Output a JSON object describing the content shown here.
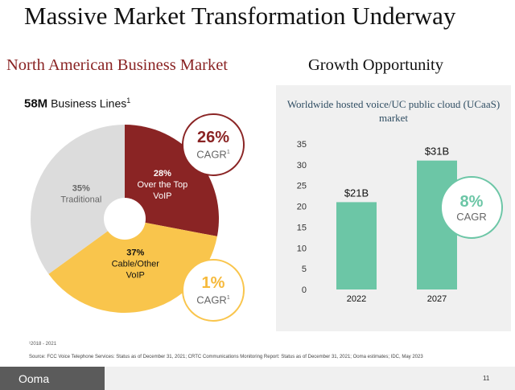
{
  "slide": {
    "title": "Massive Market Transformation Underway",
    "left_heading": "North American Business Market",
    "right_heading": "Growth Opportunity"
  },
  "market": {
    "lines_value": "58M",
    "lines_label": "Business Lines",
    "lines_sup": "1"
  },
  "cagr_badges": {
    "ott": {
      "pct": "26%",
      "label": "CAGR",
      "sup": "1"
    },
    "cable": {
      "pct": "1%",
      "label": "CAGR",
      "sup": "1"
    },
    "ucaas": {
      "pct": "8%",
      "label": "CAGR"
    }
  },
  "colors": {
    "ott": "#8a2424",
    "cable": "#f9c54c",
    "traditional": "#dcdcdc",
    "bar": "#6cc6a6",
    "panel": "#f0f0f0"
  },
  "chart_data": [
    {
      "type": "pie",
      "title": "",
      "slices": [
        {
          "label": "Over the Top VoIP",
          "label_lines": [
            "28%",
            "Over the Top",
            "VoIP"
          ],
          "value": 28
        },
        {
          "label": "Cable/Other VoIP",
          "label_lines": [
            "37%",
            "Cable/Other",
            "VoIP"
          ],
          "value": 37
        },
        {
          "label": "Traditional",
          "label_lines": [
            "35%",
            "Traditional"
          ],
          "value": 35
        }
      ],
      "donut": true
    },
    {
      "type": "bar",
      "title": "Worldwide hosted voice/UC public cloud (UCaaS) market",
      "categories": [
        "2022",
        "2027"
      ],
      "values": [
        21,
        31
      ],
      "data_labels": [
        "$21B",
        "$31B"
      ],
      "ylim": [
        0,
        35
      ],
      "yticks": [
        0,
        5,
        10,
        15,
        20,
        25,
        30,
        35
      ],
      "xlabel": "",
      "ylabel": "",
      "grid": false
    }
  ],
  "footer": {
    "footnote": "¹2018 - 2021",
    "source": "Source: FCC Voice Telephone Services: Status as of December 31, 2021; CRTC Communications Monitoring Report: Status as of December 31, 2021; Ooma estimates; IDC, May 2023",
    "logo": "Ooma",
    "page_number": "11"
  }
}
